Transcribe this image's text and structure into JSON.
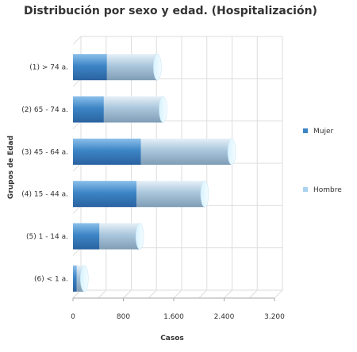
{
  "chart_data": {
    "type": "bar",
    "orientation": "horizontal",
    "stacked": true,
    "title": "Distribución por sexo y edad. (Hospitalización)",
    "xlabel": "Casos",
    "ylabel": "Grupos de Edad",
    "categories": [
      "(1) > 74 a.",
      "(2) 65 - 74 a.",
      "(3) 45 - 64 a.",
      "(4) 15 - 44 a.",
      "(5) 1 - 14 a.",
      "(6) < 1 a."
    ],
    "series": [
      {
        "name": "Mujer",
        "values": [
          540,
          490,
          1080,
          1010,
          420,
          60
        ],
        "color": "#3d85c6"
      },
      {
        "name": "Hombre",
        "values": [
          800,
          940,
          1440,
          1080,
          640,
          120
        ],
        "color": "#a9cbe6"
      }
    ],
    "xlim": [
      0,
      3200
    ],
    "xticks": [
      0,
      800,
      1600,
      2400,
      3200
    ],
    "xtick_labels": [
      "0",
      "800",
      "1.600",
      "2.400",
      "3.200"
    ],
    "grid": true,
    "legend_position": "right"
  }
}
